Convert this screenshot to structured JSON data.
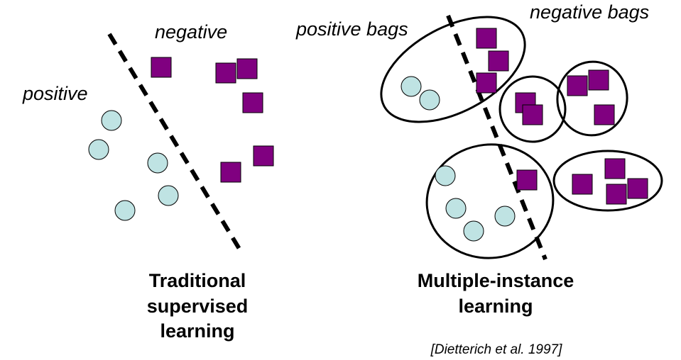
{
  "left_panel": {
    "label_positive": "positive",
    "label_negative": "negative",
    "caption_lines": [
      "Traditional",
      "supervised",
      "learning"
    ]
  },
  "right_panel": {
    "label_positive_bags": "positive bags",
    "label_negative_bags": "negative bags",
    "caption_lines": [
      "Multiple-instance",
      "learning"
    ],
    "citation": "[Dietterich et al. 1997]"
  },
  "colors": {
    "positive_instance_fill": "#bfe3e3",
    "negative_instance_fill": "#800080",
    "outline": "#000000",
    "background": "#ffffff"
  },
  "icons": {
    "positive_instance": "circle",
    "negative_instance": "square"
  }
}
